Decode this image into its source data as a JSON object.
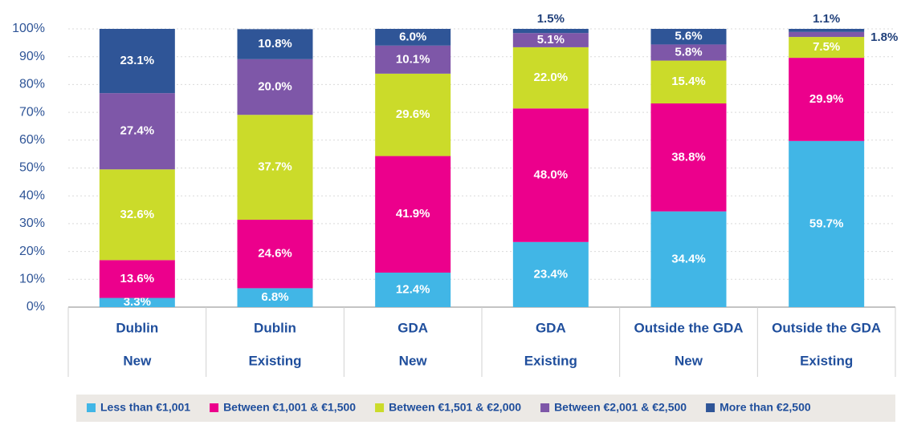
{
  "chart_data": {
    "type": "stacked_bar",
    "categories": [
      "Dublin",
      "Dublin",
      "GDA",
      "GDA",
      "Outside the GDA",
      "Outside the GDA"
    ],
    "subcategories": [
      "New",
      "Existing",
      "New",
      "Existing",
      "New",
      "Existing"
    ],
    "ylim": [
      0,
      100
    ],
    "yticks": [
      {
        "value": 0,
        "label": "0%"
      },
      {
        "value": 10,
        "label": "10%"
      },
      {
        "value": 20,
        "label": "20%"
      },
      {
        "value": 30,
        "label": "30%"
      },
      {
        "value": 40,
        "label": "40%"
      },
      {
        "value": 50,
        "label": "50%"
      },
      {
        "value": 60,
        "label": "60%"
      },
      {
        "value": 70,
        "label": "70%"
      },
      {
        "value": 80,
        "label": "80%"
      },
      {
        "value": 90,
        "label": "90%"
      },
      {
        "value": 100,
        "label": "100%"
      }
    ],
    "grid": true,
    "legend": "bottom",
    "series": [
      {
        "name": "Less than €1,001",
        "color": "#41b6e6",
        "values": [
          3.3,
          6.8,
          12.4,
          23.4,
          34.4,
          59.7
        ],
        "value_labels": [
          "3.3%",
          "6.8%",
          "12.4%",
          "23.4%",
          "34.4%",
          "59.7%"
        ]
      },
      {
        "name": "Between €1,001 & €1,500",
        "color": "#ec008c",
        "values": [
          13.6,
          24.6,
          41.9,
          48.0,
          38.8,
          29.9
        ],
        "value_labels": [
          "13.6%",
          "24.6%",
          "41.9%",
          "48.0%",
          "38.8%",
          "29.9%"
        ]
      },
      {
        "name": "Between €1,501 & €2,000",
        "color": "#cbdb2a",
        "values": [
          32.6,
          37.7,
          29.6,
          22.0,
          15.4,
          7.5
        ],
        "value_labels": [
          "32.6%",
          "37.7%",
          "29.6%",
          "22.0%",
          "15.4%",
          "7.5%"
        ]
      },
      {
        "name": "Between €2,001 & €2,500",
        "color": "#7e57a8",
        "values": [
          27.4,
          20.0,
          10.1,
          5.1,
          5.8,
          1.8
        ],
        "value_labels": [
          "27.4%",
          "20.0%",
          "10.1%",
          "5.1%",
          "5.8%",
          "1.8%"
        ]
      },
      {
        "name": "More than €2,500",
        "color": "#2f5597",
        "values": [
          23.1,
          10.8,
          6.0,
          1.5,
          5.6,
          1.1
        ],
        "value_labels": [
          "23.1%",
          "10.8%",
          "6.0%",
          "1.5%",
          "5.6%",
          "1.1%"
        ]
      }
    ]
  }
}
